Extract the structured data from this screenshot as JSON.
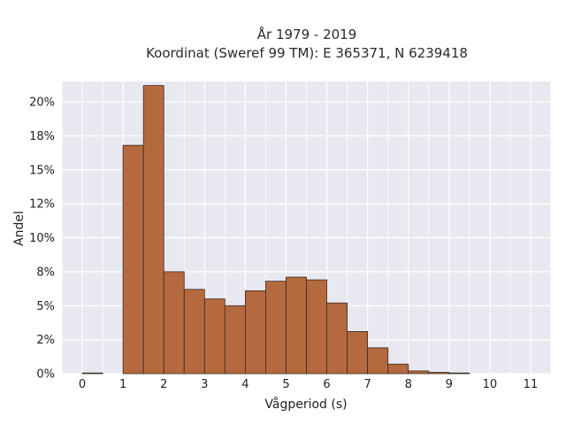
{
  "chart_data": {
    "type": "bar",
    "title": "År 1979 - 2019",
    "subtitle": "Koordinat (Sweref 99 TM): E 365371, N 6239418",
    "xlabel": "Vågperiod (s)",
    "ylabel": "Andel",
    "bar_color": "#b5693f",
    "bar_edge": "#3a2a20",
    "plot_bg": "#e8e8f0",
    "xlim": [
      -0.5,
      11.5
    ],
    "ylim": [
      0,
      0.215
    ],
    "x_ticks": [
      0,
      1,
      2,
      3,
      4,
      5,
      6,
      7,
      8,
      9,
      10,
      11
    ],
    "y_ticks": [
      0,
      0.025,
      0.05,
      0.075,
      0.1,
      0.125,
      0.15,
      0.175,
      0.2
    ],
    "y_tick_labels": [
      "0%",
      "2%",
      "5%",
      "8%",
      "10%",
      "12%",
      "15%",
      "18%",
      "20%"
    ],
    "bin_width": 0.5,
    "bins": [
      {
        "start": 0.0,
        "value": 0.0005
      },
      {
        "start": 0.5,
        "value": 0.0
      },
      {
        "start": 1.0,
        "value": 0.168
      },
      {
        "start": 1.5,
        "value": 0.212
      },
      {
        "start": 2.0,
        "value": 0.075
      },
      {
        "start": 2.5,
        "value": 0.062
      },
      {
        "start": 3.0,
        "value": 0.055
      },
      {
        "start": 3.5,
        "value": 0.05
      },
      {
        "start": 4.0,
        "value": 0.061
      },
      {
        "start": 4.5,
        "value": 0.068
      },
      {
        "start": 5.0,
        "value": 0.071
      },
      {
        "start": 5.5,
        "value": 0.069
      },
      {
        "start": 6.0,
        "value": 0.052
      },
      {
        "start": 6.5,
        "value": 0.031
      },
      {
        "start": 7.0,
        "value": 0.019
      },
      {
        "start": 7.5,
        "value": 0.007
      },
      {
        "start": 8.0,
        "value": 0.002
      },
      {
        "start": 8.5,
        "value": 0.001
      },
      {
        "start": 9.0,
        "value": 0.0005
      }
    ]
  }
}
